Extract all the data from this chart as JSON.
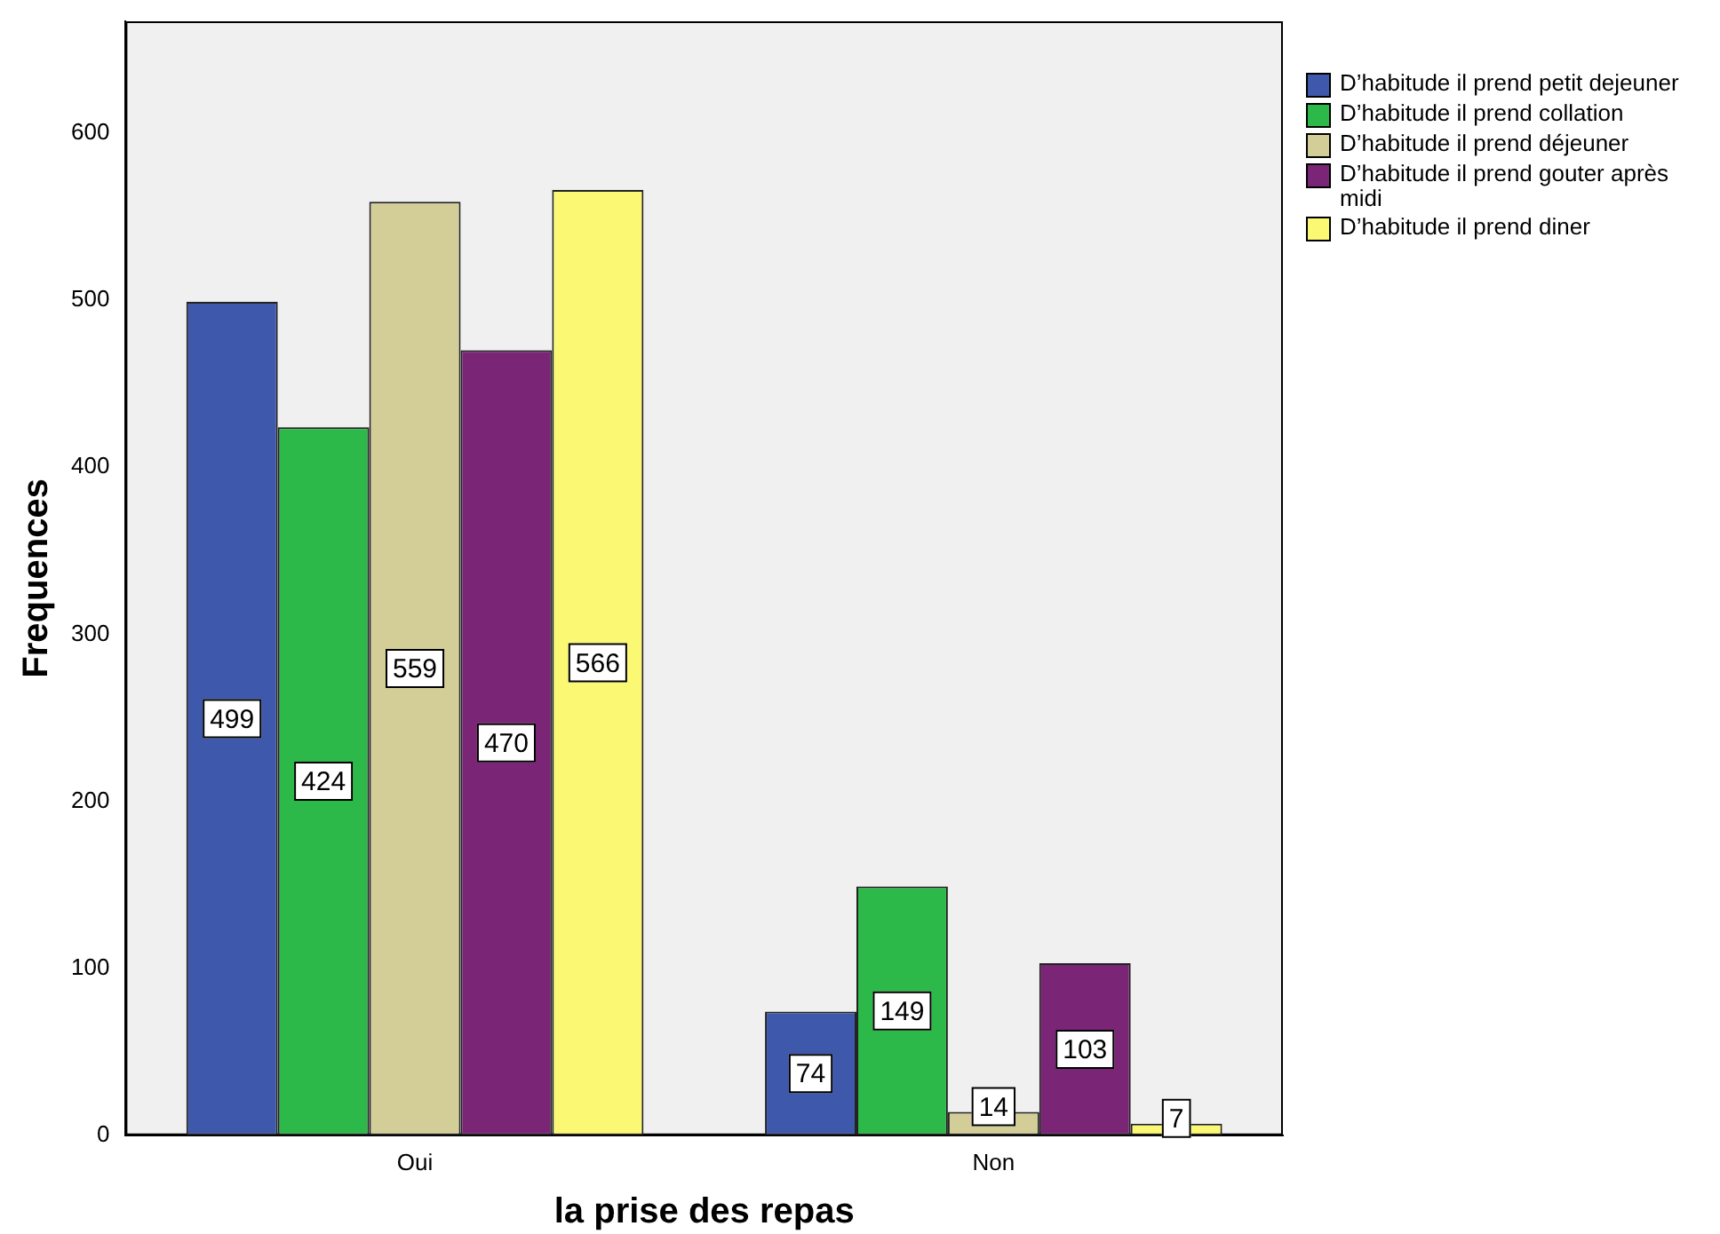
{
  "chart_data": {
    "type": "bar",
    "xlabel": "la prise des repas",
    "ylabel": "Frequences",
    "categories": [
      "Oui",
      "Non"
    ],
    "series": [
      {
        "name": "D’habitude il prend petit dejeuner",
        "color": "#3e58ac",
        "values": [
          499,
          74
        ]
      },
      {
        "name": "D’habitude il prend collation",
        "color": "#2db84a",
        "values": [
          424,
          149
        ]
      },
      {
        "name": "D’habitude il prend déjeuner",
        "color": "#d3ce97",
        "values": [
          559,
          14
        ]
      },
      {
        "name": "D’habitude il prend gouter après midi",
        "color": "#7b2577",
        "values": [
          470,
          103
        ]
      },
      {
        "name": "D’habitude il prend diner",
        "color": "#fbf873",
        "values": [
          566,
          7
        ]
      }
    ],
    "ylim": [
      0,
      667
    ],
    "yticks": [
      0,
      100,
      200,
      300,
      400,
      500,
      600
    ],
    "grid": false,
    "legend": "right",
    "data_labels": true
  }
}
